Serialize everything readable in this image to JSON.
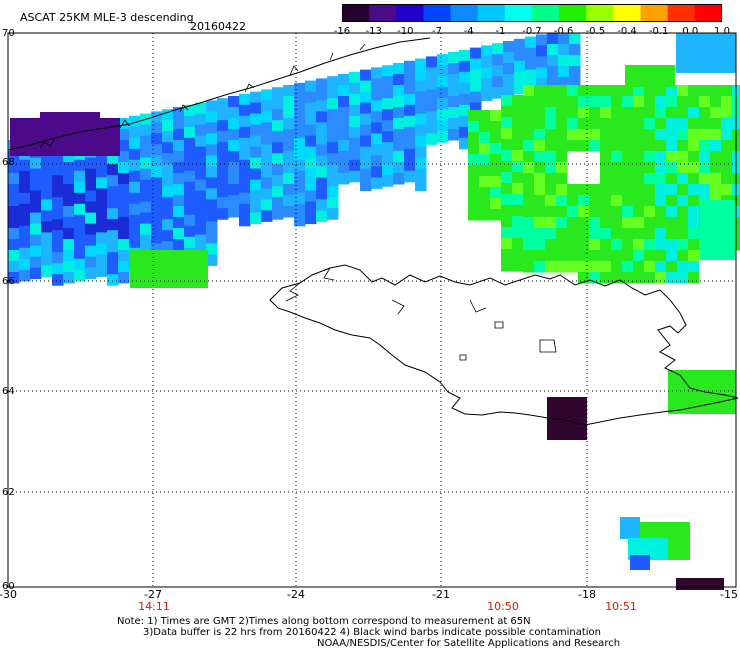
{
  "header": {
    "title": "ASCAT 25KM MLE-3 descending",
    "date": "20160422"
  },
  "colorbar": {
    "labels": [
      "-16",
      "-13",
      "-10",
      "-7",
      "-4",
      "-1",
      "-0.7",
      "-0.6",
      "-0.5",
      "-0.4",
      "-0.1",
      "0.0",
      "1.0"
    ],
    "colors": [
      "#25002e",
      "#4a0a8a",
      "#2200cc",
      "#0044ff",
      "#0a8cff",
      "#00c8ff",
      "#00ffee",
      "#00ff88",
      "#22ee00",
      "#9aff00",
      "#ffff00",
      "#ffa000",
      "#ff3000",
      "#ff0000"
    ]
  },
  "axes": {
    "x_ticks": [
      "-30",
      "-27",
      "-24",
      "-21",
      "-18",
      "-15"
    ],
    "y_ticks": [
      "70",
      "68",
      "66",
      "64",
      "62",
      "60"
    ],
    "time_labels": [
      "14:11",
      "10:50",
      "10:51"
    ]
  },
  "notes": {
    "line1": "Note: 1) Times are GMT 2)Times along bottom correspond to measurement at 65N",
    "line2": "3)Data buffer is 22 hrs from 20160422 4) Black wind barbs indicate possible contamination",
    "line3": "NOAA/NESDIS/Center for Satellite Applications and Research"
  },
  "palette": {
    "deep_purple": "#4a0a8a",
    "dark_blue": "#1a2cd6",
    "blue": "#1e5cff",
    "mid_blue": "#2a8cff",
    "light_blue": "#1eb4ff",
    "cyan": "#00d8ff",
    "aqua": "#00f0e0",
    "sea_green": "#00ffa0",
    "green": "#2ae81e",
    "lime": "#66ff22",
    "black_purple": "#30062e"
  }
}
